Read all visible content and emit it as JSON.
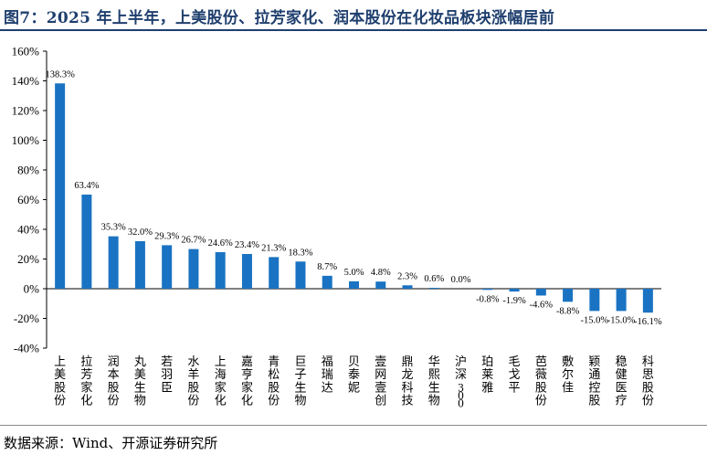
{
  "title": "图7：2025 年上半年，上美股份、拉芳家化、润本股份在化妆品板块涨幅居前",
  "source": "数据来源：Wind、开源证券研究所",
  "chart_data": {
    "type": "bar",
    "categories": [
      "上美股份",
      "拉芳家化",
      "润本股份",
      "丸美生物",
      "若羽臣",
      "水羊股份",
      "上海家化",
      "嘉亨家化",
      "青松股份",
      "巨子生物",
      "福瑞达",
      "贝泰妮",
      "壹网壹创",
      "鼎龙科技",
      "华熙生物",
      "沪深300",
      "珀莱雅",
      "毛戈平",
      "芭薇股份",
      "敷尔佳",
      "颖通控股",
      "稳健医疗",
      "科思股份"
    ],
    "values": [
      138.3,
      63.4,
      35.3,
      32.0,
      29.3,
      26.7,
      24.6,
      23.4,
      21.3,
      18.3,
      8.7,
      5.0,
      4.8,
      2.3,
      0.6,
      0.0,
      -0.8,
      -1.9,
      -4.6,
      -8.8,
      -15.0,
      -15.0,
      -16.1
    ],
    "value_labels": [
      "138.3%",
      "63.4%",
      "35.3%",
      "32.0%",
      "29.3%",
      "26.7%",
      "24.6%",
      "23.4%",
      "21.3%",
      "18.3%",
      "8.7%",
      "5.0%",
      "4.8%",
      "2.3%",
      "0.6%",
      "0.0%",
      "-0.8%",
      "-1.9%",
      "-4.6%",
      "-8.8%",
      "-15.0%",
      "-15.0%",
      "-16.1%"
    ],
    "ylim": [
      -40,
      160
    ],
    "yticks": [
      -40,
      -20,
      0,
      20,
      40,
      60,
      80,
      100,
      120,
      140,
      160
    ],
    "ytick_labels": [
      "-40%",
      "-20%",
      "0%",
      "20%",
      "40%",
      "60%",
      "80%",
      "100%",
      "120%",
      "140%",
      "160%"
    ],
    "xlabel": "",
    "ylabel": "",
    "grid": false,
    "legend": "none",
    "bar_color": "#1a73c2"
  }
}
